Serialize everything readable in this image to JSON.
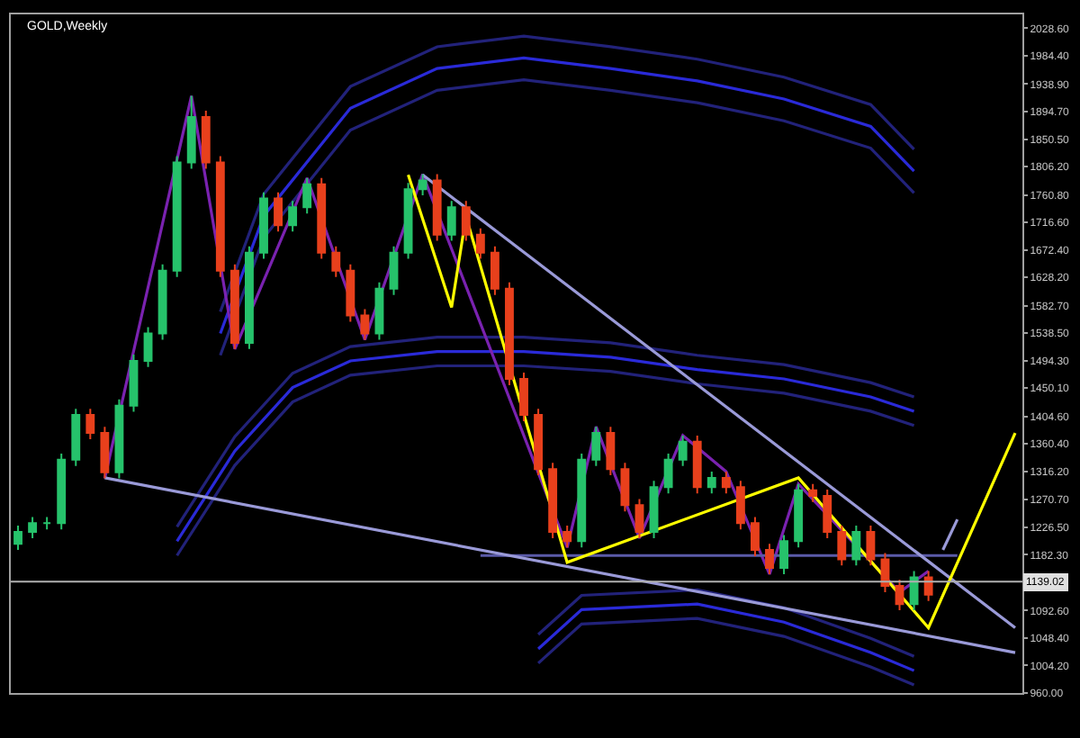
{
  "chart_data": {
    "type": "candlestick",
    "title": "GOLD,Weekly",
    "categories": [
      null,
      null,
      null,
      null,
      null,
      null,
      null,
      null,
      null,
      null,
      null,
      null,
      null,
      null,
      null,
      null,
      null,
      null,
      null,
      null,
      null,
      null,
      null,
      null,
      null,
      null,
      null,
      null,
      null,
      null,
      null,
      null,
      null,
      null,
      null,
      null,
      null,
      null,
      null,
      null,
      null,
      null,
      null,
      null,
      null,
      null,
      null,
      null,
      null,
      null,
      null,
      null,
      null,
      null,
      null,
      null,
      null,
      null,
      null,
      null,
      null,
      null,
      null,
      null,
      null,
      null,
      null,
      null,
      null,
      null
    ],
    "ohlc": [
      [
        1200,
        1229,
        1190,
        1219
      ],
      [
        1219,
        1243,
        1209,
        1233
      ],
      [
        1233,
        1243,
        1223,
        1233
      ],
      [
        1233,
        1345,
        1223,
        1335
      ],
      [
        1335,
        1417,
        1325,
        1407
      ],
      [
        1407,
        1417,
        1368,
        1378
      ],
      [
        1378,
        1388,
        1305,
        1315
      ],
      [
        1315,
        1432,
        1305,
        1422
      ],
      [
        1422,
        1504,
        1412,
        1494
      ],
      [
        1494,
        1548,
        1484,
        1538
      ],
      [
        1538,
        1649,
        1528,
        1639
      ],
      [
        1639,
        1823,
        1629,
        1813
      ],
      [
        1813,
        1920,
        1803,
        1886
      ],
      [
        1886,
        1896,
        1803,
        1813
      ],
      [
        1813,
        1823,
        1629,
        1639
      ],
      [
        1639,
        1649,
        1513,
        1523
      ],
      [
        1523,
        1678,
        1513,
        1668
      ],
      [
        1668,
        1765,
        1658,
        1755
      ],
      [
        1755,
        1765,
        1702,
        1712
      ],
      [
        1712,
        1751,
        1702,
        1741
      ],
      [
        1741,
        1788,
        1731,
        1778
      ],
      [
        1778,
        1788,
        1658,
        1668
      ],
      [
        1668,
        1678,
        1629,
        1639
      ],
      [
        1639,
        1649,
        1557,
        1567
      ],
      [
        1567,
        1577,
        1528,
        1538
      ],
      [
        1538,
        1620,
        1528,
        1610
      ],
      [
        1610,
        1678,
        1600,
        1668
      ],
      [
        1668,
        1780,
        1658,
        1770
      ],
      [
        1770,
        1794,
        1760,
        1784
      ],
      [
        1784,
        1794,
        1687,
        1697
      ],
      [
        1697,
        1751,
        1687,
        1741
      ],
      [
        1741,
        1751,
        1687,
        1697
      ],
      [
        1697,
        1707,
        1658,
        1668
      ],
      [
        1668,
        1678,
        1600,
        1610
      ],
      [
        1610,
        1620,
        1455,
        1465
      ],
      [
        1465,
        1475,
        1397,
        1407
      ],
      [
        1407,
        1417,
        1310,
        1320
      ],
      [
        1320,
        1330,
        1209,
        1219
      ],
      [
        1219,
        1229,
        1194,
        1204
      ],
      [
        1204,
        1345,
        1194,
        1335
      ],
      [
        1335,
        1388,
        1325,
        1378
      ],
      [
        1378,
        1388,
        1310,
        1320
      ],
      [
        1320,
        1330,
        1252,
        1262
      ],
      [
        1262,
        1272,
        1209,
        1219
      ],
      [
        1219,
        1301,
        1209,
        1291
      ],
      [
        1291,
        1345,
        1281,
        1335
      ],
      [
        1335,
        1374,
        1325,
        1364
      ],
      [
        1364,
        1374,
        1281,
        1291
      ],
      [
        1291,
        1316,
        1281,
        1306
      ],
      [
        1306,
        1316,
        1281,
        1291
      ],
      [
        1291,
        1301,
        1223,
        1233
      ],
      [
        1233,
        1243,
        1180,
        1190
      ],
      [
        1190,
        1200,
        1151,
        1161
      ],
      [
        1161,
        1214,
        1151,
        1204
      ],
      [
        1204,
        1296,
        1194,
        1286
      ],
      [
        1286,
        1296,
        1267,
        1277
      ],
      [
        1277,
        1287,
        1209,
        1219
      ],
      [
        1219,
        1229,
        1165,
        1175
      ],
      [
        1175,
        1229,
        1165,
        1219
      ],
      [
        1219,
        1229,
        1165,
        1175
      ],
      [
        1175,
        1185,
        1122,
        1132
      ],
      [
        1132,
        1142,
        1093,
        1103
      ],
      [
        1103,
        1156,
        1093,
        1146
      ],
      [
        1146,
        1156,
        1108,
        1118
      ],
      null,
      null,
      null,
      null,
      null,
      null
    ],
    "colors": [
      "#26c26b",
      "#26c26b",
      "#26c26b",
      "#26c26b",
      "#26c26b",
      "#e8401c",
      "#e8401c",
      "#26c26b",
      "#26c26b",
      "#26c26b",
      "#26c26b",
      "#26c26b",
      "#26c26b",
      "#e8401c",
      "#e8401c",
      "#e8401c",
      "#26c26b",
      "#26c26b",
      "#e8401c",
      "#26c26b",
      "#26c26b",
      "#e8401c",
      "#e8401c",
      "#e8401c",
      "#e8401c",
      "#26c26b",
      "#26c26b",
      "#26c26b",
      "#26c26b",
      "#e8401c",
      "#26c26b",
      "#e8401c",
      "#e8401c",
      "#e8401c",
      "#e8401c",
      "#e8401c",
      "#e8401c",
      "#e8401c",
      "#e8401c",
      "#26c26b",
      "#26c26b",
      "#e8401c",
      "#e8401c",
      "#e8401c",
      "#26c26b",
      "#26c26b",
      "#26c26b",
      "#e8401c",
      "#26c26b",
      "#e8401c",
      "#e8401c",
      "#e8401c",
      "#e8401c",
      "#26c26b",
      "#26c26b",
      "#e8401c",
      "#e8401c",
      "#e8401c",
      "#26c26b",
      "#e8401c",
      "#e8401c",
      "#e8401c",
      "#26c26b",
      "#e8401c",
      null,
      null,
      null,
      null,
      null,
      null
    ],
    "series": [
      {
        "type": "line",
        "color": "#2a2ad8",
        "values": [
          null,
          null,
          null,
          null,
          null,
          null,
          null,
          null,
          null,
          null,
          null,
          null,
          null,
          null,
          1538,
          null,
          null,
          1727,
          null,
          null,
          null,
          null,
          null,
          1900,
          null,
          null,
          null,
          null,
          null,
          1964,
          null,
          null,
          null,
          null,
          null,
          1981,
          null,
          null,
          null,
          null,
          null,
          1964,
          null,
          null,
          null,
          null,
          null,
          1944,
          null,
          null,
          null,
          null,
          null,
          1915,
          null,
          null,
          null,
          null,
          null,
          1871,
          null,
          null,
          1799,
          null,
          null,
          null,
          null,
          null,
          null,
          null
        ]
      },
      {
        "type": "line",
        "color": "#22227a",
        "values": [
          null,
          null,
          null,
          null,
          null,
          null,
          null,
          null,
          null,
          null,
          null,
          null,
          null,
          null,
          1573,
          null,
          null,
          1762,
          null,
          null,
          null,
          null,
          null,
          1935,
          null,
          null,
          null,
          null,
          null,
          1999,
          null,
          null,
          null,
          null,
          null,
          2016,
          null,
          null,
          null,
          null,
          null,
          1999,
          null,
          null,
          null,
          null,
          null,
          1979,
          null,
          null,
          null,
          null,
          null,
          1950,
          null,
          null,
          null,
          null,
          null,
          1906,
          null,
          null,
          1834,
          null,
          null,
          null,
          null,
          null,
          null,
          null
        ]
      },
      {
        "type": "line",
        "color": "#22227a",
        "values": [
          null,
          null,
          null,
          null,
          null,
          null,
          null,
          null,
          null,
          null,
          null,
          null,
          null,
          null,
          1503,
          null,
          null,
          1692,
          null,
          null,
          null,
          null,
          null,
          1865,
          null,
          null,
          null,
          null,
          null,
          1929,
          null,
          null,
          null,
          null,
          null,
          1946,
          null,
          null,
          null,
          null,
          null,
          1929,
          null,
          null,
          null,
          null,
          null,
          1909,
          null,
          null,
          null,
          null,
          null,
          1880,
          null,
          null,
          null,
          null,
          null,
          1836,
          null,
          null,
          1764,
          null,
          null,
          null,
          null,
          null,
          null,
          null
        ]
      },
      {
        "type": "line",
        "color": "#2a2ad8",
        "values": [
          null,
          null,
          null,
          null,
          null,
          null,
          null,
          null,
          null,
          null,
          null,
          1204,
          null,
          null,
          null,
          1349,
          null,
          null,
          null,
          1451,
          null,
          null,
          null,
          1494,
          null,
          null,
          null,
          null,
          null,
          1509,
          null,
          null,
          null,
          null,
          null,
          1509,
          null,
          null,
          null,
          null,
          null,
          1500,
          null,
          null,
          null,
          null,
          null,
          1480,
          null,
          null,
          null,
          null,
          null,
          1465,
          null,
          null,
          null,
          null,
          null,
          1436,
          null,
          null,
          1413,
          null,
          null,
          null,
          null,
          null,
          null,
          null
        ]
      },
      {
        "type": "line",
        "color": "#22227a",
        "values": [
          null,
          null,
          null,
          null,
          null,
          null,
          null,
          null,
          null,
          null,
          null,
          1227,
          null,
          null,
          null,
          1372,
          null,
          null,
          null,
          1474,
          null,
          null,
          null,
          1517,
          null,
          null,
          null,
          null,
          null,
          1532,
          null,
          null,
          null,
          null,
          null,
          1532,
          null,
          null,
          null,
          null,
          null,
          1523,
          null,
          null,
          null,
          null,
          null,
          1503,
          null,
          null,
          null,
          null,
          null,
          1488,
          null,
          null,
          null,
          null,
          null,
          1459,
          null,
          null,
          1436,
          null,
          null,
          null,
          null,
          null,
          null,
          null
        ]
      },
      {
        "type": "line",
        "color": "#22227a",
        "values": [
          null,
          null,
          null,
          null,
          null,
          null,
          null,
          null,
          null,
          null,
          null,
          1181,
          null,
          null,
          null,
          1326,
          null,
          null,
          null,
          1428,
          null,
          null,
          null,
          1471,
          null,
          null,
          null,
          null,
          null,
          1486,
          null,
          null,
          null,
          null,
          null,
          1486,
          null,
          null,
          null,
          null,
          null,
          1477,
          null,
          null,
          null,
          null,
          null,
          1457,
          null,
          null,
          null,
          null,
          null,
          1442,
          null,
          null,
          null,
          null,
          null,
          1413,
          null,
          null,
          1390,
          null,
          null,
          null,
          null,
          null,
          null,
          null
        ]
      },
      {
        "type": "line",
        "color": "#2a2ad8",
        "values": [
          null,
          null,
          null,
          null,
          null,
          null,
          null,
          null,
          null,
          null,
          null,
          null,
          null,
          null,
          null,
          null,
          null,
          null,
          null,
          null,
          null,
          null,
          null,
          null,
          null,
          null,
          null,
          null,
          null,
          null,
          null,
          null,
          null,
          null,
          null,
          null,
          1031,
          null,
          null,
          1094,
          null,
          null,
          null,
          null,
          null,
          null,
          null,
          1103,
          null,
          null,
          null,
          null,
          null,
          1074,
          null,
          null,
          null,
          null,
          null,
          1025,
          null,
          null,
          996,
          null,
          null,
          null,
          null,
          null,
          null,
          null
        ]
      },
      {
        "type": "line",
        "color": "#22227a",
        "values": [
          null,
          null,
          null,
          null,
          null,
          null,
          null,
          null,
          null,
          null,
          null,
          null,
          null,
          null,
          null,
          null,
          null,
          null,
          null,
          null,
          null,
          null,
          null,
          null,
          null,
          null,
          null,
          null,
          null,
          null,
          null,
          null,
          null,
          null,
          null,
          null,
          1054,
          null,
          null,
          1117,
          null,
          null,
          null,
          null,
          null,
          null,
          null,
          1126,
          null,
          null,
          null,
          null,
          null,
          1097,
          null,
          null,
          null,
          null,
          null,
          1048,
          null,
          null,
          1019,
          null,
          null,
          null,
          null,
          null,
          null,
          null
        ]
      },
      {
        "type": "line",
        "color": "#22227a",
        "values": [
          null,
          null,
          null,
          null,
          null,
          null,
          null,
          null,
          null,
          null,
          null,
          null,
          null,
          null,
          null,
          null,
          null,
          null,
          null,
          null,
          null,
          null,
          null,
          null,
          null,
          null,
          null,
          null,
          null,
          null,
          null,
          null,
          null,
          null,
          null,
          null,
          1008,
          null,
          null,
          1071,
          null,
          null,
          null,
          null,
          null,
          null,
          null,
          1080,
          null,
          null,
          null,
          null,
          null,
          1051,
          null,
          null,
          null,
          null,
          null,
          1002,
          null,
          null,
          973,
          null,
          null,
          null,
          null,
          null,
          null,
          null
        ]
      },
      {
        "type": "line",
        "color": "#7a22b0",
        "values": [
          null,
          null,
          null,
          null,
          null,
          null,
          1305,
          null,
          null,
          null,
          null,
          null,
          1920,
          null,
          null,
          1513,
          null,
          null,
          null,
          null,
          1788,
          null,
          null,
          null,
          1528,
          null,
          null,
          null,
          1794,
          null,
          null,
          null,
          null,
          null,
          null,
          null,
          null,
          null,
          1194,
          null,
          1388,
          null,
          null,
          1209,
          null,
          null,
          1374,
          null,
          null,
          1316,
          null,
          null,
          1151,
          null,
          1296,
          null,
          null,
          null,
          null,
          null,
          null,
          1122,
          null,
          1156,
          null,
          null,
          null,
          null,
          null,
          null
        ]
      },
      {
        "type": "line",
        "color": "#5a5aa8",
        "values": [
          null,
          null,
          null,
          null,
          null,
          null,
          null,
          null,
          null,
          null,
          null,
          null,
          null,
          null,
          null,
          null,
          null,
          null,
          null,
          null,
          null,
          null,
          null,
          null,
          null,
          null,
          null,
          null,
          null,
          null,
          null,
          null,
          1181,
          null,
          null,
          null,
          null,
          null,
          null,
          null,
          null,
          null,
          null,
          null,
          null,
          null,
          null,
          null,
          null,
          null,
          null,
          null,
          null,
          null,
          null,
          null,
          null,
          null,
          null,
          null,
          null,
          null,
          null,
          null,
          null,
          1181,
          null,
          null,
          null,
          null
        ]
      },
      {
        "type": "line",
        "color": "#9a9ad8",
        "values": [
          null,
          null,
          null,
          null,
          null,
          null,
          1306,
          null,
          null,
          null,
          null,
          null,
          null,
          null,
          null,
          null,
          null,
          null,
          null,
          null,
          null,
          null,
          null,
          null,
          null,
          null,
          null,
          null,
          null,
          null,
          null,
          null,
          null,
          null,
          null,
          null,
          null,
          null,
          null,
          null,
          null,
          null,
          null,
          null,
          null,
          null,
          null,
          null,
          null,
          null,
          null,
          null,
          null,
          null,
          null,
          null,
          null,
          null,
          null,
          null,
          null,
          null,
          null,
          null,
          null,
          null,
          null,
          null,
          null,
          1025
        ]
      },
      {
        "type": "line",
        "color": "#9a9ad8",
        "values": [
          null,
          null,
          null,
          null,
          null,
          null,
          null,
          null,
          null,
          null,
          null,
          null,
          null,
          null,
          null,
          null,
          null,
          null,
          null,
          null,
          null,
          null,
          null,
          null,
          null,
          null,
          null,
          null,
          1793,
          null,
          null,
          null,
          null,
          null,
          null,
          null,
          null,
          null,
          null,
          null,
          null,
          null,
          null,
          null,
          null,
          null,
          null,
          null,
          null,
          null,
          null,
          null,
          null,
          null,
          null,
          null,
          null,
          null,
          null,
          null,
          null,
          null,
          null,
          null,
          null,
          null,
          null,
          null,
          null,
          1065
        ]
      },
      {
        "type": "line",
        "color": "#9a9ad8",
        "values": [
          null,
          null,
          null,
          null,
          null,
          null,
          null,
          null,
          null,
          null,
          null,
          null,
          null,
          null,
          null,
          null,
          null,
          null,
          null,
          null,
          null,
          null,
          null,
          null,
          null,
          null,
          null,
          null,
          null,
          null,
          null,
          null,
          null,
          null,
          null,
          null,
          null,
          null,
          null,
          null,
          null,
          null,
          null,
          null,
          null,
          null,
          null,
          null,
          null,
          null,
          null,
          null,
          null,
          null,
          null,
          null,
          null,
          null,
          null,
          null,
          null,
          null,
          null,
          null,
          1190,
          1239,
          null,
          null,
          null,
          null
        ]
      },
      {
        "type": "line",
        "color": "#ffff00",
        "values": [
          null,
          null,
          null,
          null,
          null,
          null,
          null,
          null,
          null,
          null,
          null,
          null,
          null,
          null,
          null,
          null,
          null,
          null,
          null,
          null,
          null,
          null,
          null,
          null,
          null,
          null,
          null,
          1793,
          null,
          null,
          1580,
          1726,
          null,
          null,
          null,
          null,
          null,
          null,
          1170,
          null,
          null,
          null,
          null,
          null,
          null,
          null,
          null,
          null,
          null,
          null,
          null,
          null,
          null,
          null,
          1306,
          null,
          null,
          null,
          null,
          null,
          null,
          null,
          null,
          1065,
          null,
          null,
          null,
          null,
          null,
          1378
        ]
      }
    ],
    "ylim": [
      960,
      2051
    ],
    "yticks": [
      {
        "value": 960,
        "label": "960.00"
      },
      {
        "value": 1004.2,
        "label": "1004.20"
      },
      {
        "value": 1048.4,
        "label": "1048.40"
      },
      {
        "value": 1092.6,
        "label": "1092.60"
      },
      {
        "value": 1182.3,
        "label": "1182.30"
      },
      {
        "value": 1226.5,
        "label": "1226.50"
      },
      {
        "value": 1270.7,
        "label": "1270.70"
      },
      {
        "value": 1316.2,
        "label": "1316.20"
      },
      {
        "value": 1360.4,
        "label": "1360.40"
      },
      {
        "value": 1404.6,
        "label": "1404.60"
      },
      {
        "value": 1450.1,
        "label": "1450.10"
      },
      {
        "value": 1494.3,
        "label": "1494.30"
      },
      {
        "value": 1538.5,
        "label": "1538.50"
      },
      {
        "value": 1582.7,
        "label": "1582.70"
      },
      {
        "value": 1628.2,
        "label": "1628.20"
      },
      {
        "value": 1672.4,
        "label": "1672.40"
      },
      {
        "value": 1716.6,
        "label": "1716.60"
      },
      {
        "value": 1760.8,
        "label": "1760.80"
      },
      {
        "value": 1806.2,
        "label": "1806.20"
      },
      {
        "value": 1850.5,
        "label": "1850.50"
      },
      {
        "value": 1894.7,
        "label": "1894.70"
      },
      {
        "value": 1938.9,
        "label": "1938.90"
      },
      {
        "value": 1984.4,
        "label": "1984.40"
      },
      {
        "value": 2028.6,
        "label": "2028.60"
      }
    ],
    "ref_lines": [
      {
        "axis": "y",
        "value": 1139.02,
        "label": "1139.02",
        "color": "#b0b0b0"
      }
    ]
  }
}
